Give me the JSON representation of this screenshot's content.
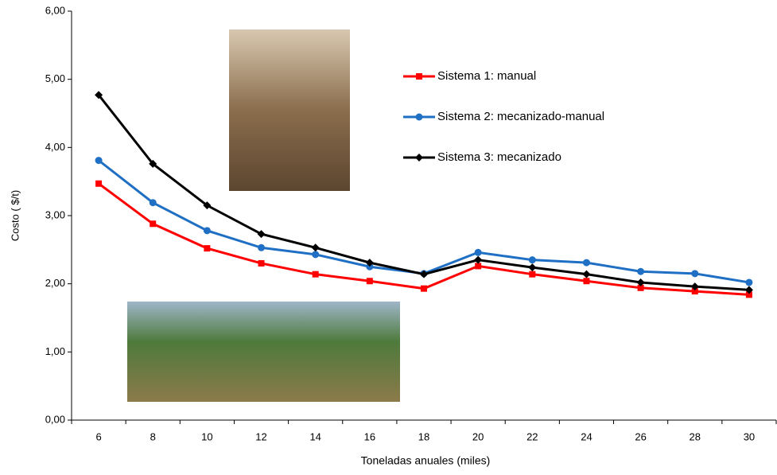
{
  "chart_data": {
    "type": "line",
    "x_label": "Toneladas anuales (miles)",
    "y_label": "Costo ( $/t)",
    "categories": [
      6,
      8,
      10,
      12,
      14,
      16,
      18,
      20,
      22,
      24,
      26,
      28,
      30
    ],
    "series": [
      {
        "name": "Sistema 1: manual",
        "color": "#ff0000",
        "marker": "square",
        "values": [
          3.47,
          2.88,
          2.52,
          2.3,
          2.14,
          2.04,
          1.93,
          2.26,
          2.14,
          2.04,
          1.94,
          1.89,
          1.84
        ]
      },
      {
        "name": "Sistema 2: mecanizado-manual",
        "color": "#1f6fc4",
        "marker": "circle",
        "values": [
          3.81,
          3.19,
          2.78,
          2.53,
          2.43,
          2.25,
          2.15,
          2.46,
          2.35,
          2.31,
          2.18,
          2.15,
          2.02
        ]
      },
      {
        "name": "Sistema 3: mecanizado",
        "color": "#000000",
        "marker": "diamond",
        "values": [
          4.77,
          3.76,
          3.15,
          2.73,
          2.53,
          2.31,
          2.14,
          2.35,
          2.24,
          2.14,
          2.02,
          1.96,
          1.91
        ]
      }
    ],
    "ylim": [
      0,
      6
    ],
    "yticks": [
      {
        "value": 0,
        "label": "0,00"
      },
      {
        "value": 1,
        "label": "1,00"
      },
      {
        "value": 2,
        "label": "2,00"
      },
      {
        "value": 3,
        "label": "3,00"
      },
      {
        "value": 4,
        "label": "4,00"
      },
      {
        "value": 5,
        "label": "5,00"
      },
      {
        "value": 6,
        "label": "6,00"
      }
    ],
    "grid": false
  }
}
